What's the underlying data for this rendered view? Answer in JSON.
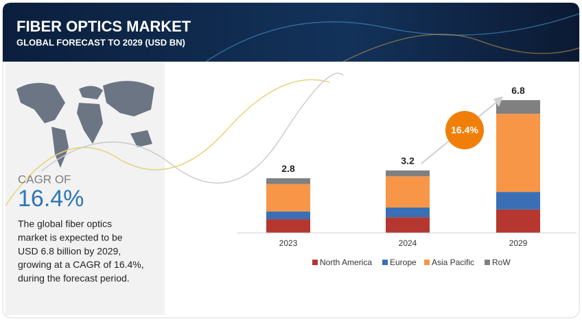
{
  "chart_data": {
    "type": "stacked_bar",
    "title": "FIBER OPTICS MARKET",
    "subtitle": "GLOBAL FORECAST TO 2029 (USD BN)",
    "categories": [
      "2023",
      "2024",
      "2029"
    ],
    "series": [
      {
        "name": "North America",
        "color": "#b5372f",
        "values": [
          0.7,
          0.8,
          1.2
        ]
      },
      {
        "name": "Europe",
        "color": "#3a6fb5",
        "values": [
          0.4,
          0.5,
          0.9
        ]
      },
      {
        "name": "Asia Pacific",
        "color": "#f79646",
        "values": [
          1.4,
          1.6,
          4.0
        ]
      },
      {
        "name": "RoW",
        "color": "#808080",
        "values": [
          0.3,
          0.3,
          0.7
        ]
      }
    ],
    "totals": [
      2.8,
      3.2,
      6.8
    ],
    "cagr_badge": "16.4%"
  },
  "sidebar": {
    "cagr_label": "CAGR OF",
    "cagr_value": "16.4%",
    "description": [
      "The global fiber optics",
      "market is expected to be",
      "USD 6.8 billion  by 2029,",
      "growing at a CAGR of 16.4%,",
      "during the forecast period."
    ]
  }
}
